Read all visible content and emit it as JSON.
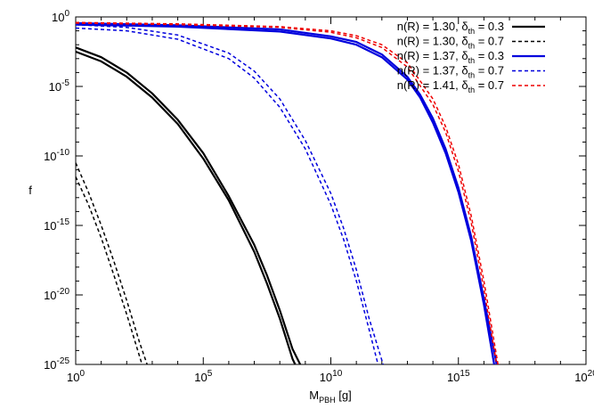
{
  "chart_data": {
    "type": "line",
    "title": "",
    "xlabel": {
      "main": "M",
      "sub": "PBH",
      "unit": "[g]"
    },
    "ylabel": "f",
    "xscale": "log",
    "yscale": "log",
    "xlim_exp": [
      0,
      20
    ],
    "ylim_exp": [
      -25,
      0
    ],
    "x_ticks": [
      {
        "exp": 0,
        "base": "10",
        "sup": "0"
      },
      {
        "exp": 5,
        "base": "10",
        "sup": "5"
      },
      {
        "exp": 10,
        "base": "10",
        "sup": "10"
      },
      {
        "exp": 15,
        "base": "10",
        "sup": "15"
      },
      {
        "exp": 20,
        "base": "10",
        "sup": "20"
      }
    ],
    "y_ticks": [
      {
        "exp": 0,
        "base": "10",
        "sup": "0"
      },
      {
        "exp": -5,
        "base": "10",
        "sup": "-5"
      },
      {
        "exp": -10,
        "base": "10",
        "sup": "-10"
      },
      {
        "exp": -15,
        "base": "10",
        "sup": "-15"
      },
      {
        "exp": -20,
        "base": "10",
        "sup": "-20"
      },
      {
        "exp": -25,
        "base": "10",
        "sup": "-25"
      }
    ],
    "legend_position": "top-right",
    "series": [
      {
        "legend": {
          "pre": "n(R) = 1.30, ",
          "delta": "δ",
          "sub": "th",
          "post": " = 0.3"
        },
        "color": "#000000",
        "dashed": false,
        "curves": [
          [
            [
              0,
              -2.5
            ],
            [
              1,
              -3.2
            ],
            [
              2,
              -4.3
            ],
            [
              3,
              -5.8
            ],
            [
              4,
              -7.7
            ],
            [
              5,
              -10.2
            ],
            [
              6,
              -13.2
            ],
            [
              7,
              -16.9
            ],
            [
              7.5,
              -19.2
            ],
            [
              8,
              -21.7
            ],
            [
              8.5,
              -24.6
            ],
            [
              8.6,
              -25
            ]
          ],
          [
            [
              0,
              -2.2
            ],
            [
              1,
              -2.9
            ],
            [
              2,
              -4.0
            ],
            [
              3,
              -5.5
            ],
            [
              4,
              -7.4
            ],
            [
              5,
              -9.8
            ],
            [
              6,
              -12.9
            ],
            [
              7,
              -16.4
            ],
            [
              7.5,
              -18.6
            ],
            [
              8,
              -21.1
            ],
            [
              8.5,
              -23.9
            ],
            [
              8.8,
              -25
            ]
          ]
        ]
      },
      {
        "legend": {
          "pre": "n(R) = 1.30, ",
          "delta": "δ",
          "sub": "th",
          "post": " = 0.7"
        },
        "color": "#000000",
        "dashed": true,
        "curves": [
          [
            [
              0,
              -11.5
            ],
            [
              0.5,
              -13.5
            ],
            [
              1,
              -15.9
            ],
            [
              1.5,
              -18.6
            ],
            [
              2,
              -21.4
            ],
            [
              2.5,
              -24.4
            ],
            [
              2.6,
              -25
            ]
          ],
          [
            [
              0,
              -10.5
            ],
            [
              0.5,
              -12.6
            ],
            [
              1,
              -15.0
            ],
            [
              1.5,
              -17.6
            ],
            [
              2,
              -20.4
            ],
            [
              2.5,
              -23.4
            ],
            [
              2.8,
              -25
            ]
          ]
        ]
      },
      {
        "legend": {
          "pre": "n(R) = 1.37, ",
          "delta": "δ",
          "sub": "th",
          "post": " = 0.3"
        },
        "color": "#0000dd",
        "dashed": false,
        "curves": [
          [
            [
              0,
              -0.45
            ],
            [
              4,
              -0.6
            ],
            [
              8,
              -0.9
            ],
            [
              10,
              -1.4
            ],
            [
              11,
              -1.8
            ],
            [
              12,
              -2.7
            ],
            [
              13,
              -4.3
            ],
            [
              13.5,
              -5.6
            ],
            [
              14,
              -7.3
            ],
            [
              14.5,
              -9.5
            ],
            [
              15,
              -12.3
            ],
            [
              15.5,
              -15.8
            ],
            [
              16,
              -20.3
            ],
            [
              16.5,
              -25
            ]
          ],
          [
            [
              0,
              -0.55
            ],
            [
              4,
              -0.7
            ],
            [
              8,
              -1.05
            ],
            [
              10,
              -1.55
            ],
            [
              11,
              -2.0
            ],
            [
              12,
              -2.9
            ],
            [
              13,
              -4.5
            ],
            [
              13.5,
              -5.8
            ],
            [
              14,
              -7.6
            ],
            [
              14.5,
              -9.8
            ],
            [
              15,
              -12.6
            ],
            [
              15.5,
              -16.1
            ],
            [
              16,
              -20.7
            ],
            [
              16.4,
              -25
            ]
          ]
        ]
      },
      {
        "legend": {
          "pre": "n(R) = 1.37, ",
          "delta": "δ",
          "sub": "th",
          "post": " = 0.7"
        },
        "color": "#0000dd",
        "dashed": true,
        "curves": [
          [
            [
              0,
              -0.8
            ],
            [
              2,
              -1.0
            ],
            [
              4,
              -1.6
            ],
            [
              6,
              -3.0
            ],
            [
              7,
              -4.4
            ],
            [
              8,
              -6.5
            ],
            [
              9,
              -9.5
            ],
            [
              10,
              -13.5
            ],
            [
              10.5,
              -16.0
            ],
            [
              11,
              -19.0
            ],
            [
              11.5,
              -22.5
            ],
            [
              11.85,
              -25
            ]
          ],
          [
            [
              0,
              -0.55
            ],
            [
              2,
              -0.75
            ],
            [
              4,
              -1.3
            ],
            [
              6,
              -2.6
            ],
            [
              7,
              -3.9
            ],
            [
              8,
              -5.9
            ],
            [
              9,
              -8.9
            ],
            [
              10,
              -12.7
            ],
            [
              10.5,
              -15.2
            ],
            [
              11,
              -18.2
            ],
            [
              11.5,
              -21.7
            ],
            [
              12.05,
              -25
            ]
          ]
        ]
      },
      {
        "legend": {
          "pre": "n(R) = 1.41, ",
          "delta": "δ",
          "sub": "th",
          "post": " = 0.7"
        },
        "color": "#ee0000",
        "dashed": true,
        "curves": [
          [
            [
              0,
              -0.45
            ],
            [
              4,
              -0.55
            ],
            [
              8,
              -0.75
            ],
            [
              10,
              -1.1
            ],
            [
              11,
              -1.5
            ],
            [
              12,
              -2.2
            ],
            [
              13,
              -3.6
            ],
            [
              14,
              -6.3
            ],
            [
              14.5,
              -8.3
            ],
            [
              15,
              -11.1
            ],
            [
              15.5,
              -14.8
            ],
            [
              16,
              -19.6
            ],
            [
              16.5,
              -25
            ]
          ],
          [
            [
              0,
              -0.4
            ],
            [
              4,
              -0.5
            ],
            [
              8,
              -0.7
            ],
            [
              10,
              -1.0
            ],
            [
              11,
              -1.35
            ],
            [
              12,
              -2.0
            ],
            [
              13,
              -3.3
            ],
            [
              14,
              -5.9
            ],
            [
              14.5,
              -7.9
            ],
            [
              15,
              -10.6
            ],
            [
              15.5,
              -14.3
            ],
            [
              16,
              -19.0
            ],
            [
              16.55,
              -25
            ]
          ]
        ]
      }
    ]
  }
}
